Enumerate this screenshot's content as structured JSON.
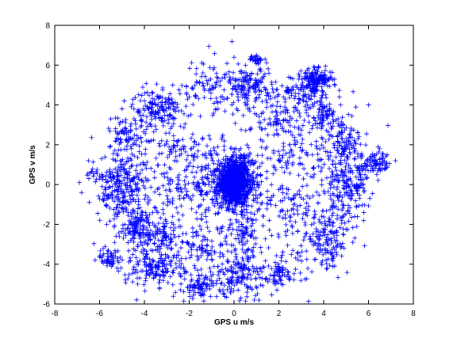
{
  "chart_data": {
    "type": "scatter",
    "title": "",
    "xlabel": "GPS u m/s",
    "ylabel": "GPS v m/s",
    "xlim": [
      -8,
      8
    ],
    "ylim": [
      -6,
      8
    ],
    "x_ticks": [
      "-8",
      "-6",
      "-4",
      "-2",
      "0",
      "2",
      "4",
      "6",
      "8"
    ],
    "y_ticks": [
      "-6",
      "-4",
      "-2",
      "0",
      "2",
      "4",
      "6",
      "8"
    ],
    "grid": false,
    "legend": "none",
    "marker": "+",
    "marker_color": "#0000ff",
    "clusters": [
      {
        "cx": 0.0,
        "cy": 0.1,
        "sx": 0.35,
        "sy": 0.55,
        "n": 900
      },
      {
        "cx": 0.0,
        "cy": 0.0,
        "sx": 0.9,
        "sy": 1.1,
        "n": 350
      },
      {
        "cx": 3.7,
        "cy": 5.3,
        "sx": 0.35,
        "sy": 0.25,
        "n": 140
      },
      {
        "cx": 3.2,
        "cy": 4.6,
        "sx": 0.6,
        "sy": 0.5,
        "n": 110
      },
      {
        "cx": 0.7,
        "cy": 5.0,
        "sx": 0.5,
        "sy": 0.45,
        "n": 120
      },
      {
        "cx": 1.0,
        "cy": 6.3,
        "sx": 0.15,
        "sy": 0.1,
        "n": 30
      },
      {
        "cx": -1.3,
        "cy": 5.0,
        "sx": 0.4,
        "sy": 0.35,
        "n": 40
      },
      {
        "cx": -3.5,
        "cy": 3.9,
        "sx": 0.5,
        "sy": 0.4,
        "n": 110
      },
      {
        "cx": -4.8,
        "cy": 2.5,
        "sx": 0.4,
        "sy": 0.5,
        "n": 60
      },
      {
        "cx": -5.0,
        "cy": 0.0,
        "sx": 0.45,
        "sy": 0.7,
        "n": 180
      },
      {
        "cx": -4.4,
        "cy": -2.3,
        "sx": 0.45,
        "sy": 0.6,
        "n": 120
      },
      {
        "cx": -5.5,
        "cy": -3.7,
        "sx": 0.3,
        "sy": 0.25,
        "n": 50
      },
      {
        "cx": -3.2,
        "cy": -2.6,
        "sx": 0.35,
        "sy": 0.35,
        "n": 60
      },
      {
        "cx": -3.6,
        "cy": -4.2,
        "sx": 0.6,
        "sy": 0.45,
        "n": 130
      },
      {
        "cx": -1.5,
        "cy": -5.1,
        "sx": 0.4,
        "sy": 0.3,
        "n": 80
      },
      {
        "cx": 0.2,
        "cy": -4.5,
        "sx": 0.6,
        "sy": 0.55,
        "n": 130
      },
      {
        "cx": 0.5,
        "cy": -2.5,
        "sx": 0.4,
        "sy": 0.4,
        "n": 50
      },
      {
        "cx": 2.0,
        "cy": -4.6,
        "sx": 0.4,
        "sy": 0.3,
        "n": 50
      },
      {
        "cx": 4.2,
        "cy": -2.8,
        "sx": 0.5,
        "sy": 0.6,
        "n": 100
      },
      {
        "cx": 5.0,
        "cy": 0.0,
        "sx": 0.5,
        "sy": 0.9,
        "n": 170
      },
      {
        "cx": 6.3,
        "cy": 1.0,
        "sx": 0.35,
        "sy": 0.3,
        "n": 90
      },
      {
        "cx": 4.9,
        "cy": 2.3,
        "sx": 0.4,
        "sy": 0.45,
        "n": 70
      },
      {
        "cx": 4.0,
        "cy": 3.5,
        "sx": 0.3,
        "sy": 0.3,
        "n": 40
      },
      {
        "cx": 2.3,
        "cy": 1.5,
        "sx": 0.6,
        "sy": 0.5,
        "n": 60
      },
      {
        "cx": -2.1,
        "cy": 1.5,
        "sx": 0.7,
        "sy": 0.6,
        "n": 70
      },
      {
        "cx": -6.2,
        "cy": 0.6,
        "sx": 0.3,
        "sy": 0.2,
        "n": 20
      },
      {
        "cx": -2.3,
        "cy": -0.5,
        "sx": 0.8,
        "sy": 0.8,
        "n": 80
      },
      {
        "cx": 2.4,
        "cy": -1.0,
        "sx": 0.8,
        "sy": 0.8,
        "n": 80
      },
      {
        "cx": 2.0,
        "cy": 3.2,
        "sx": 0.6,
        "sy": 0.5,
        "n": 60
      },
      {
        "cx": -1.5,
        "cy": -3.3,
        "sx": 0.6,
        "sy": 0.5,
        "n": 60
      }
    ],
    "ring": {
      "r": 4.7,
      "sr": 0.9,
      "n": 700
    },
    "outliers": [
      {
        "x": -6.9,
        "y": 0.1
      },
      {
        "x": -6.8,
        "y": -0.4
      },
      {
        "x": -6.5,
        "y": 1.2
      },
      {
        "x": 7.2,
        "y": 1.2
      },
      {
        "x": 6.5,
        "y": 1.8
      },
      {
        "x": 6.0,
        "y": 4.0
      },
      {
        "x": -5.5,
        "y": 3.3
      },
      {
        "x": -4.9,
        "y": 4.2
      },
      {
        "x": 0.9,
        "y": -5.8
      },
      {
        "x": 0.3,
        "y": -5.7
      },
      {
        "x": -4.3,
        "y": -5.0
      },
      {
        "x": 1.0,
        "y": 6.5
      },
      {
        "x": 0.0,
        "y": 6.4
      },
      {
        "x": 4.7,
        "y": 4.4
      },
      {
        "x": 5.3,
        "y": -2.9
      }
    ]
  }
}
